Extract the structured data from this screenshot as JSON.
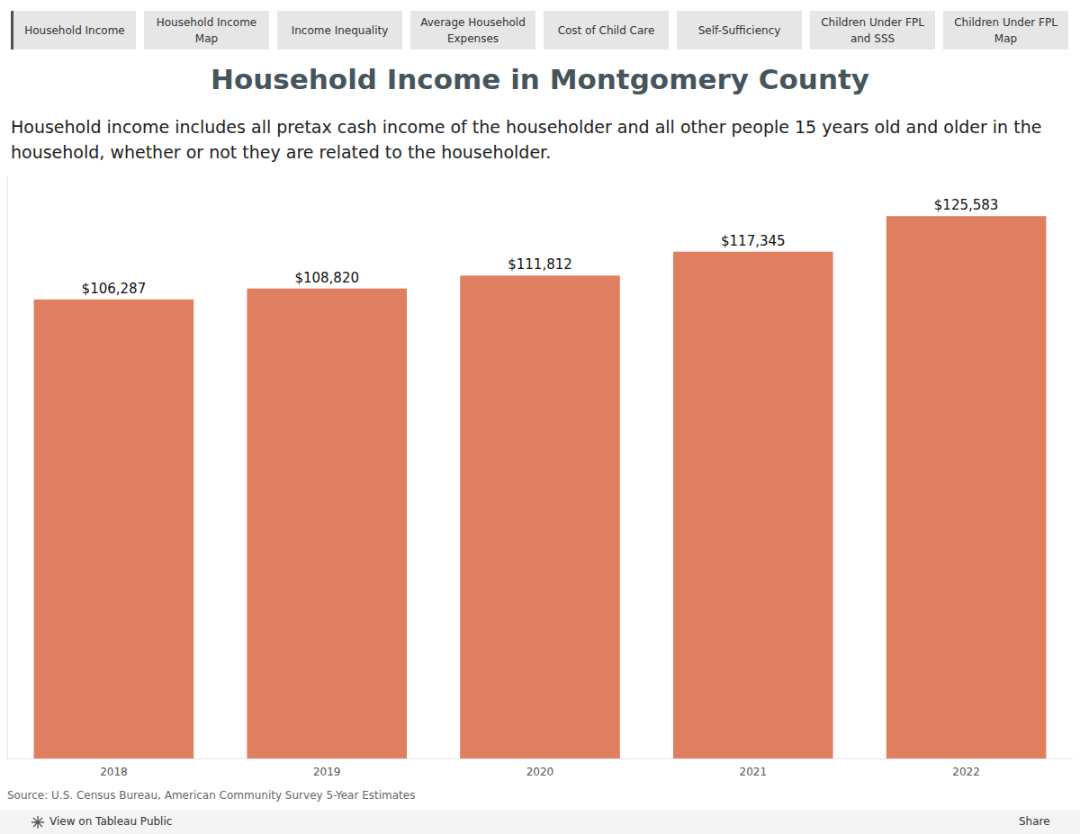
{
  "chart_data": {
    "type": "bar",
    "title": "Household Income in Montgomery County",
    "subtitle": "Household income includes all pretax cash income of the householder and all other people 15 years old and older in the household, whether or not they are related to the householder.",
    "categories": [
      "2018",
      "2019",
      "2020",
      "2021",
      "2022"
    ],
    "values": [
      106287,
      108820,
      111812,
      117345,
      125583
    ],
    "value_labels": [
      "$106,287",
      "$108,820",
      "$111,812",
      "$117,345",
      "$125,583"
    ],
    "color": "#e07f60",
    "ylim": [
      0,
      135000
    ],
    "grid": false,
    "data_labels": true,
    "tick_labels": "x",
    "source": "Source: U.S. Census Bureau, American Community Survey 5-Year Estimates"
  },
  "tabs": [
    "Household Income",
    "Household Income Map",
    "Income Inequality",
    "Average Household Expenses",
    "Cost of Child Care",
    "Self-Sufficiency",
    "Children Under FPL and SSS",
    "Children Under FPL Map"
  ],
  "footer": {
    "view": "View on Tableau Public",
    "share": "Share"
  }
}
